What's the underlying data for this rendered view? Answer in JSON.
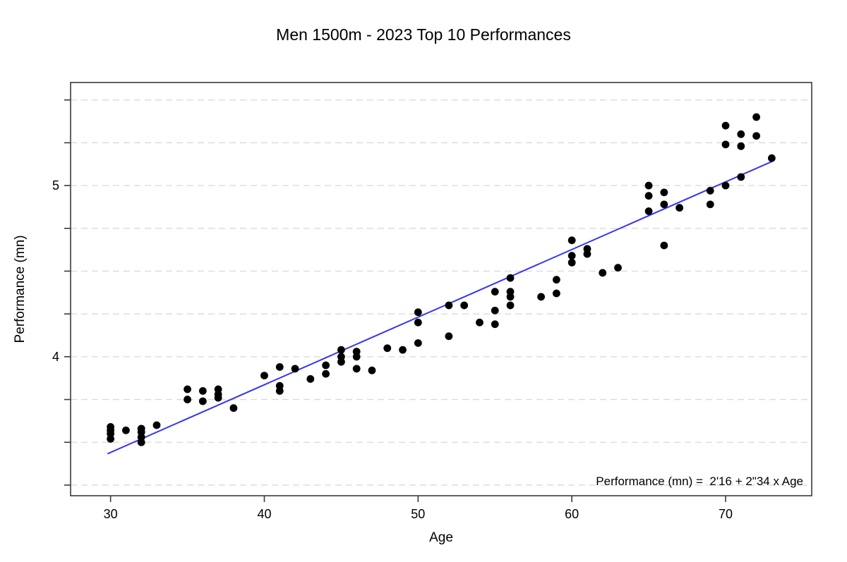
{
  "figure": {
    "title": "Men 1500m - 2023 Top 10 Performances"
  },
  "chart_data": {
    "type": "scatter",
    "title": "Men 1500m - 2023 Top 10 Performances",
    "xlabel": "Age",
    "ylabel": "Performance (mn)",
    "xlim": [
      27.4,
      75.6
    ],
    "ylim": [
      3.188,
      5.602
    ],
    "xticks": [
      30,
      40,
      50,
      60,
      70
    ],
    "yticks_labeled": [
      4,
      5
    ],
    "ygrid": {
      "start": 3.25,
      "end": 5.5,
      "step": 0.25
    },
    "grid_style": "horizontal-dashed",
    "legend": "none",
    "points": [
      [
        30,
        3.59
      ],
      [
        30,
        3.57
      ],
      [
        30,
        3.55
      ],
      [
        30,
        3.52
      ],
      [
        31,
        3.57
      ],
      [
        32,
        3.58
      ],
      [
        32,
        3.56
      ],
      [
        32,
        3.53
      ],
      [
        32,
        3.5
      ],
      [
        33,
        3.6
      ],
      [
        35,
        3.81
      ],
      [
        35,
        3.75
      ],
      [
        36,
        3.8
      ],
      [
        36,
        3.74
      ],
      [
        37,
        3.81
      ],
      [
        37,
        3.78
      ],
      [
        37,
        3.76
      ],
      [
        38,
        3.7
      ],
      [
        40,
        3.89
      ],
      [
        41,
        3.94
      ],
      [
        41,
        3.83
      ],
      [
        41,
        3.8
      ],
      [
        42,
        3.93
      ],
      [
        43,
        3.87
      ],
      [
        44,
        3.95
      ],
      [
        44,
        3.9
      ],
      [
        45,
        4.04
      ],
      [
        45,
        4.0
      ],
      [
        45,
        3.97
      ],
      [
        46,
        4.03
      ],
      [
        46,
        4.0
      ],
      [
        46,
        3.93
      ],
      [
        47,
        3.92
      ],
      [
        48,
        4.05
      ],
      [
        49,
        4.04
      ],
      [
        50,
        4.26
      ],
      [
        50,
        4.2
      ],
      [
        50,
        4.08
      ],
      [
        52,
        4.3
      ],
      [
        52,
        4.12
      ],
      [
        53,
        4.3
      ],
      [
        54,
        4.2
      ],
      [
        55,
        4.38
      ],
      [
        55,
        4.27
      ],
      [
        55,
        4.19
      ],
      [
        56,
        4.46
      ],
      [
        56,
        4.38
      ],
      [
        56,
        4.35
      ],
      [
        56,
        4.3
      ],
      [
        58,
        4.35
      ],
      [
        59,
        4.45
      ],
      [
        59,
        4.37
      ],
      [
        60,
        4.68
      ],
      [
        60,
        4.59
      ],
      [
        60,
        4.55
      ],
      [
        61,
        4.63
      ],
      [
        61,
        4.6
      ],
      [
        62,
        4.49
      ],
      [
        63,
        4.52
      ],
      [
        65,
        5.0
      ],
      [
        65,
        4.94
      ],
      [
        65,
        4.85
      ],
      [
        66,
        4.96
      ],
      [
        66,
        4.89
      ],
      [
        66,
        4.65
      ],
      [
        67,
        4.87
      ],
      [
        69,
        4.97
      ],
      [
        69,
        4.89
      ],
      [
        70,
        5.35
      ],
      [
        70,
        5.24
      ],
      [
        70,
        5.0
      ],
      [
        71,
        5.3
      ],
      [
        71,
        5.23
      ],
      [
        71,
        5.05
      ],
      [
        72,
        5.4
      ],
      [
        72,
        5.29
      ],
      [
        73,
        5.16
      ]
    ],
    "trendline": {
      "label": "Performance (mn) =  2'16 + 2\"34 x Age",
      "intercept_mn": 2.267,
      "slope_mn_per_year": 0.039,
      "x1": 29.8,
      "y1": 3.433,
      "x2": 73.0,
      "y2": 5.14
    },
    "colors": {
      "point": "#000000",
      "trendline": "#3636f2",
      "grid": "#d9d9d9",
      "frame": "#3a3a3a",
      "text": "#000000",
      "background": "#ffffff"
    }
  }
}
